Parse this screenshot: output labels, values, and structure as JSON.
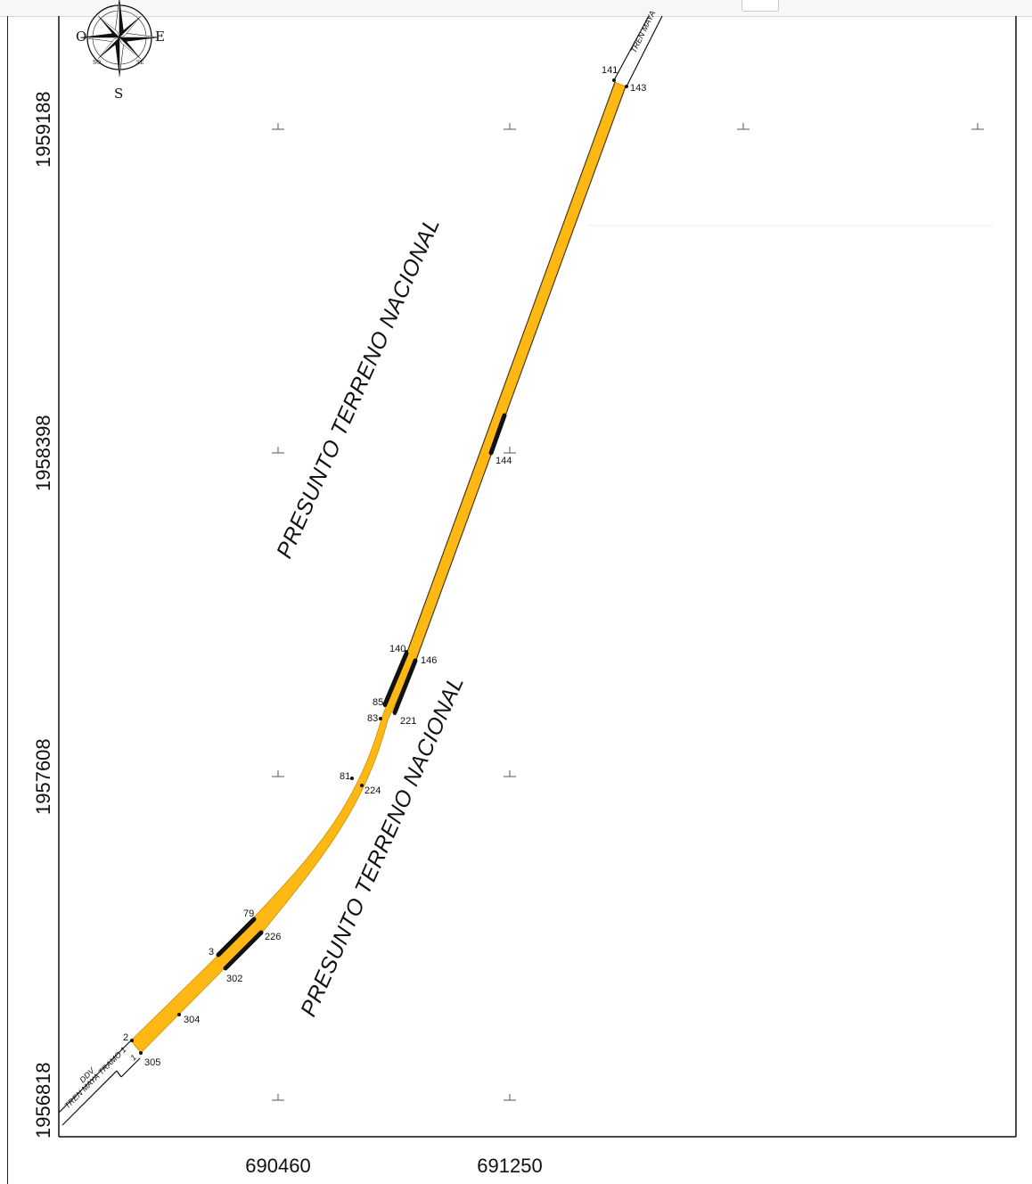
{
  "axes": {
    "y_ticks": [
      "1959188",
      "1958398",
      "1957608",
      "1956818"
    ],
    "x_ticks": [
      "690460",
      "691250"
    ]
  },
  "compass": {
    "icon": "compass-rose-icon",
    "cardinals": {
      "west": "O",
      "east": "E",
      "south": "S"
    },
    "intercardinals": {
      "sw": "SO",
      "se": "SE"
    }
  },
  "zones": [
    {
      "label": "PRESUNTO TERRENO NACIONAL"
    },
    {
      "label": "PRESUNTO TERRENO NACIONAL"
    }
  ],
  "road": {
    "main_label": "TREN MAYA TRAMO 1",
    "sub_label": "DDV",
    "top_label": "TREN MAYA",
    "segment_label": "1",
    "fill_color": "#fdb813",
    "boundary_color": "#111111"
  },
  "vertices": [
    {
      "id": "v141",
      "label": "141"
    },
    {
      "id": "v143",
      "label": "143"
    },
    {
      "id": "v144",
      "label": "144"
    },
    {
      "id": "v140",
      "label": "140"
    },
    {
      "id": "v146",
      "label": "146"
    },
    {
      "id": "v85",
      "label": "85"
    },
    {
      "id": "v83",
      "label": "83"
    },
    {
      "id": "v221",
      "label": "221"
    },
    {
      "id": "v81",
      "label": "81"
    },
    {
      "id": "v224",
      "label": "224"
    },
    {
      "id": "v79",
      "label": "79"
    },
    {
      "id": "v226",
      "label": "226"
    },
    {
      "id": "v3",
      "label": "3"
    },
    {
      "id": "v302",
      "label": "302"
    },
    {
      "id": "v304",
      "label": "304"
    },
    {
      "id": "v2",
      "label": "2"
    },
    {
      "id": "v305",
      "label": "305"
    }
  ]
}
